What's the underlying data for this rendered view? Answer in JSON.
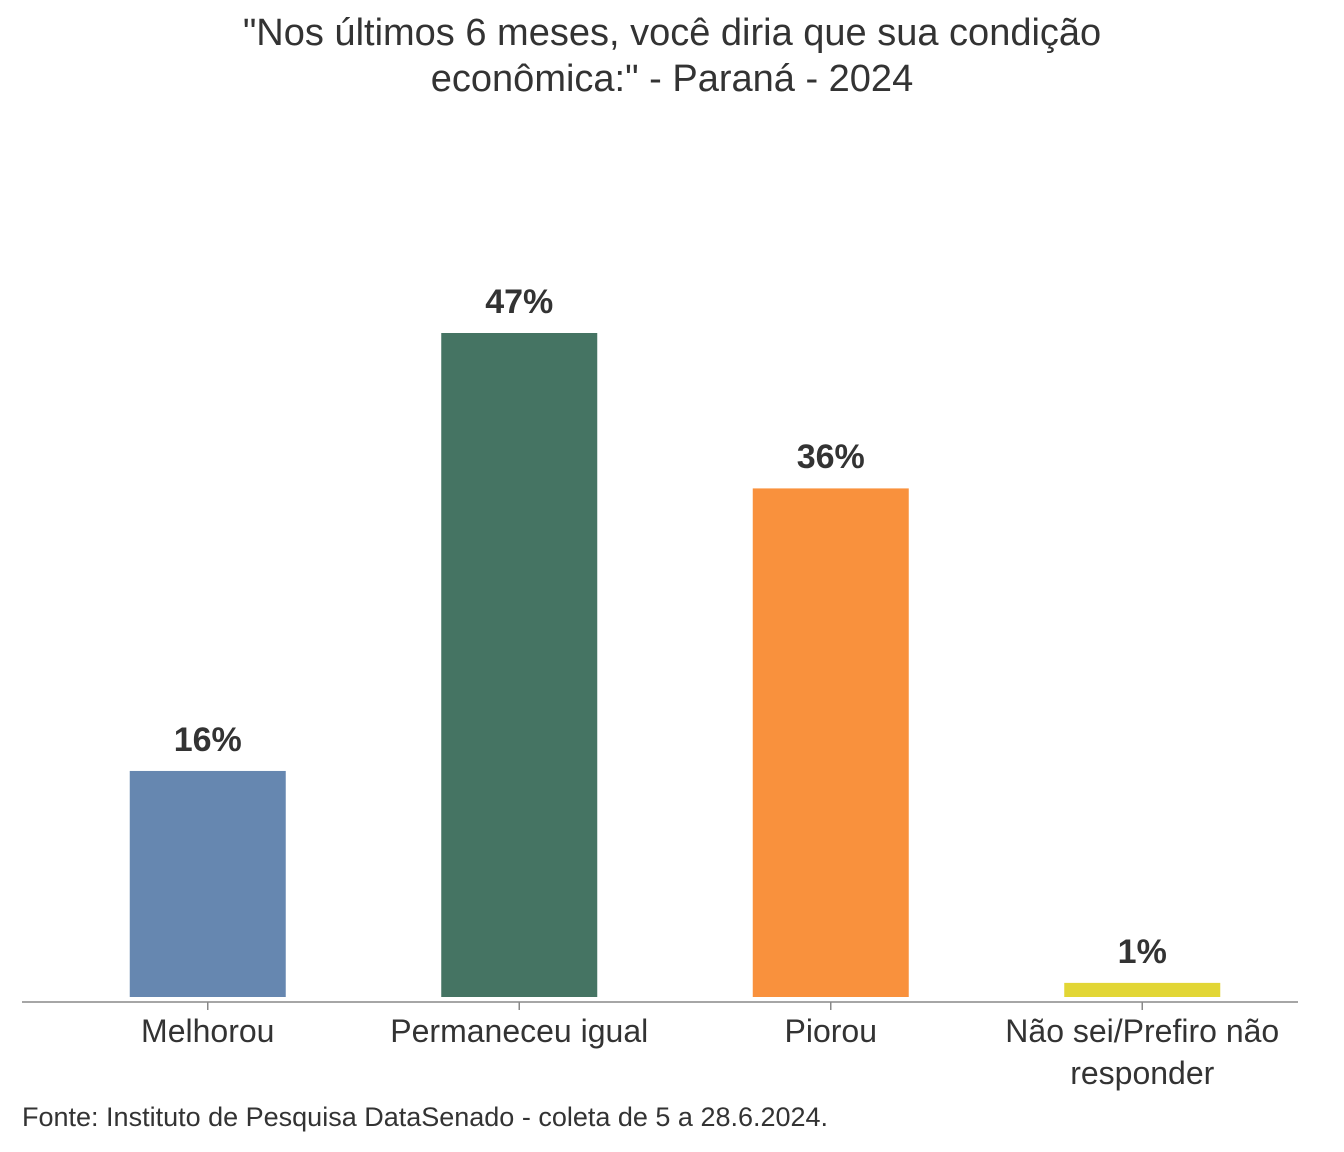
{
  "chart_data": {
    "type": "bar",
    "title": "\"Nos últimos 6 meses, você diria que sua condição econômica:\" - Paraná - 2024",
    "categories": [
      "Melhorou",
      "Permaneceu igual",
      "Piorou",
      "Não sei/Prefiro não responder"
    ],
    "values": [
      16,
      47,
      36,
      1
    ],
    "value_labels": [
      "16%",
      "47%",
      "36%",
      "1%"
    ],
    "colors": [
      "#6687b0",
      "#457463",
      "#f9913d",
      "#e2d635"
    ],
    "source": "Fonte: Instituto de Pesquisa DataSenado - coleta de 5 a 28.6.2024."
  }
}
